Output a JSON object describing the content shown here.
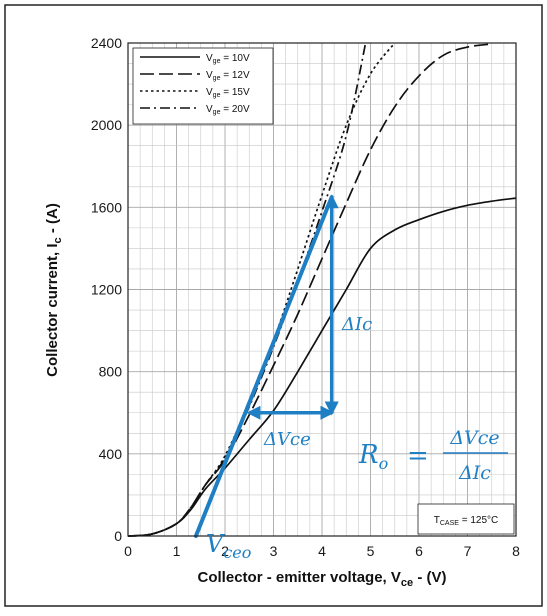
{
  "chart_data": {
    "type": "line",
    "xlabel": "Collector - emitter voltage, V",
    "xlabel_sub": "ce",
    "xlabel_unit": " - (V)",
    "ylabel": "Collector current, I",
    "ylabel_sub": "c",
    "ylabel_unit": " - (A)",
    "xlim": [
      0,
      8
    ],
    "ylim": [
      0,
      2400
    ],
    "x_ticks": [
      0,
      1,
      2,
      3,
      4,
      5,
      6,
      7,
      8
    ],
    "y_ticks": [
      0,
      400,
      800,
      1200,
      1600,
      2000,
      2400
    ],
    "grid": true,
    "legend_position": "top-left",
    "series": [
      {
        "name": "V",
        "name_sub": "ge",
        "name_suffix": " = 10V",
        "dash": "solid",
        "points": [
          [
            0,
            0
          ],
          [
            0.5,
            10
          ],
          [
            1,
            60
          ],
          [
            1.3,
            130
          ],
          [
            1.6,
            230
          ],
          [
            2,
            330
          ],
          [
            2.5,
            470
          ],
          [
            3,
            610
          ],
          [
            3.5,
            800
          ],
          [
            4,
            1000
          ],
          [
            4.5,
            1200
          ],
          [
            5,
            1400
          ],
          [
            5.5,
            1490
          ],
          [
            6,
            1540
          ],
          [
            6.5,
            1580
          ],
          [
            7,
            1610
          ],
          [
            7.5,
            1630
          ],
          [
            8,
            1645
          ]
        ]
      },
      {
        "name": "V",
        "name_sub": "ge",
        "name_suffix": " = 12V",
        "dash": "long-dash",
        "points": [
          [
            0,
            0
          ],
          [
            0.5,
            10
          ],
          [
            1,
            60
          ],
          [
            1.3,
            140
          ],
          [
            1.6,
            250
          ],
          [
            2,
            370
          ],
          [
            2.5,
            590
          ],
          [
            3,
            830
          ],
          [
            3.5,
            1080
          ],
          [
            4,
            1350
          ],
          [
            4.5,
            1620
          ],
          [
            5,
            1880
          ],
          [
            5.5,
            2090
          ],
          [
            6,
            2240
          ],
          [
            6.5,
            2340
          ],
          [
            7,
            2380
          ],
          [
            7.5,
            2395
          ]
        ]
      },
      {
        "name": "V",
        "name_sub": "ge",
        "name_suffix": " = 15V",
        "dash": "dotted",
        "points": [
          [
            0,
            0
          ],
          [
            0.5,
            10
          ],
          [
            1,
            60
          ],
          [
            1.3,
            140
          ],
          [
            1.6,
            250
          ],
          [
            2,
            390
          ],
          [
            2.5,
            650
          ],
          [
            3,
            950
          ],
          [
            3.5,
            1300
          ],
          [
            4,
            1660
          ],
          [
            4.5,
            2000
          ],
          [
            5,
            2250
          ],
          [
            5.5,
            2400
          ]
        ]
      },
      {
        "name": "V",
        "name_sub": "ge",
        "name_suffix": " = 20V",
        "dash": "dash-dot",
        "points": [
          [
            0,
            0
          ],
          [
            0.5,
            10
          ],
          [
            1,
            60
          ],
          [
            1.3,
            140
          ],
          [
            1.6,
            250
          ],
          [
            2,
            380
          ],
          [
            2.5,
            630
          ],
          [
            3,
            920
          ],
          [
            3.5,
            1240
          ],
          [
            4,
            1580
          ],
          [
            4.5,
            1950
          ],
          [
            4.9,
            2400
          ]
        ]
      }
    ],
    "annotation_lines": {
      "tangent": [
        [
          1.4,
          0
        ],
        [
          4.2,
          1650
        ]
      ],
      "delta_ic_arrow": [
        [
          4.2,
          600
        ],
        [
          4.2,
          1650
        ]
      ],
      "delta_vce_arrow": [
        [
          2.5,
          600
        ],
        [
          4.2,
          600
        ]
      ]
    },
    "annotations": {
      "delta_ic": "ΔIc",
      "delta_vce": "ΔVce",
      "vceo_main": "V",
      "vceo_sub": "ceo",
      "ro_lhs_main": "R",
      "ro_lhs_sub": "o",
      "ro_equals": "=",
      "ro_num": "ΔVce",
      "ro_den": "ΔIc",
      "case_temp_main": "T",
      "case_temp_sub": "CASE",
      "case_temp_value": " = 125°C"
    },
    "colors": {
      "annotation": "#1f7fc4",
      "curves": "#111111",
      "grid": "#c8c8c8"
    }
  }
}
